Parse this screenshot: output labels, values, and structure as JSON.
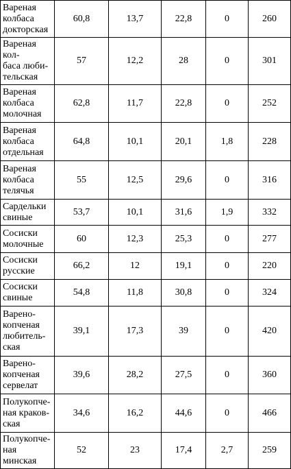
{
  "rows": [
    {
      "name": "Вареная\nколбаса\nдокторская",
      "v1": "60,8",
      "v2": "13,7",
      "v3": "22,8",
      "v4": "0",
      "v5": "260"
    },
    {
      "name": "Вареная кол-\nбаса люби-\nтельская",
      "v1": "57",
      "v2": "12,2",
      "v3": "28",
      "v4": "0",
      "v5": "301"
    },
    {
      "name": "Вареная\nколбаса\nмолочная",
      "v1": "62,8",
      "v2": "11,7",
      "v3": "22,8",
      "v4": "0",
      "v5": "252"
    },
    {
      "name": "Вареная\nколбаса\nотдельная",
      "v1": "64,8",
      "v2": "10,1",
      "v3": "20,1",
      "v4": "1,8",
      "v5": "228"
    },
    {
      "name": "Вареная\nколбаса\nтелячья",
      "v1": "55",
      "v2": "12,5",
      "v3": "29,6",
      "v4": "0",
      "v5": "316"
    },
    {
      "name": "Сардельки\nсвиные",
      "v1": "53,7",
      "v2": "10,1",
      "v3": "31,6",
      "v4": "1,9",
      "v5": "332"
    },
    {
      "name": "Сосиски\nмолочные",
      "v1": "60",
      "v2": "12,3",
      "v3": "25,3",
      "v4": "0",
      "v5": "277"
    },
    {
      "name": "Сосиски\nрусские",
      "v1": "66,2",
      "v2": "12",
      "v3": "19,1",
      "v4": "0",
      "v5": "220"
    },
    {
      "name": "Сосиски\nсвиные",
      "v1": "54,8",
      "v2": "11,8",
      "v3": "30,8",
      "v4": "0",
      "v5": "324"
    },
    {
      "name": "Варено-\nкопченая\nлюбитель-\nская",
      "v1": "39,1",
      "v2": "17,3",
      "v3": "39",
      "v4": "0",
      "v5": "420"
    },
    {
      "name": "Варено-\nкопченая\nсервелат",
      "v1": "39,6",
      "v2": "28,2",
      "v3": "27,5",
      "v4": "0",
      "v5": "360"
    },
    {
      "name": "Полукопче-\nная краков-\nская",
      "v1": "34,6",
      "v2": "16,2",
      "v3": "44,6",
      "v4": "0",
      "v5": "466"
    },
    {
      "name": "Полукопче-\nная минская",
      "v1": "52",
      "v2": "23",
      "v3": "17,4",
      "v4": "2,7",
      "v5": "259"
    }
  ]
}
